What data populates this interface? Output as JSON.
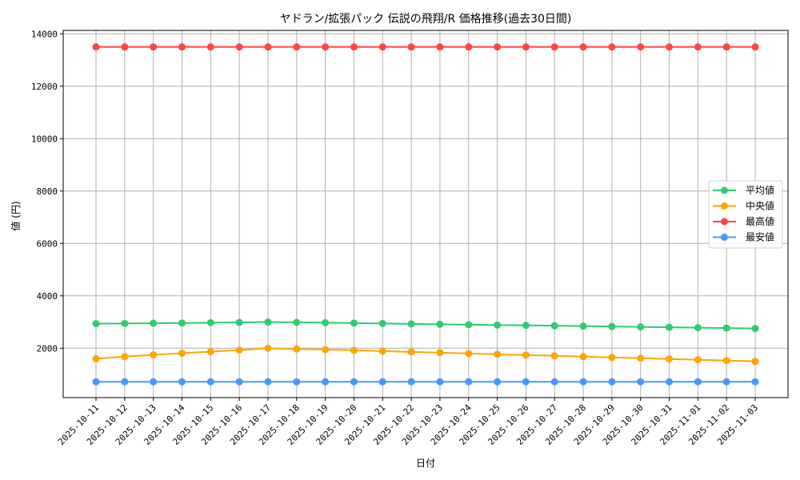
{
  "chart_data": {
    "type": "line",
    "title": "ヤドラン/拡張パック 伝説の飛翔/R 価格推移(過去30日間)",
    "xlabel": "日付",
    "ylabel": "値 (円)",
    "ylim": [
      0,
      14000
    ],
    "yticks": [
      2000,
      4000,
      6000,
      8000,
      10000,
      12000,
      14000
    ],
    "grid": true,
    "legend_position": "center right",
    "x": [
      "2025-10-11",
      "2025-10-12",
      "2025-10-13",
      "2025-10-14",
      "2025-10-15",
      "2025-10-16",
      "2025-10-17",
      "2025-10-18",
      "2025-10-19",
      "2025-10-20",
      "2025-10-21",
      "2025-10-22",
      "2025-10-23",
      "2025-10-24",
      "2025-10-25",
      "2025-10-26",
      "2025-10-27",
      "2025-10-28",
      "2025-10-29",
      "2025-10-30",
      "2025-10-31",
      "2025-11-01",
      "2025-11-02",
      "2025-11-03"
    ],
    "series": [
      {
        "name": "平均値",
        "color": "#2ecc71",
        "values": [
          2940,
          2945,
          2955,
          2965,
          2975,
          2985,
          3000,
          2990,
          2975,
          2960,
          2945,
          2930,
          2915,
          2900,
          2885,
          2875,
          2860,
          2845,
          2830,
          2815,
          2800,
          2785,
          2770,
          2755
        ]
      },
      {
        "name": "中央値",
        "color": "#ffa500",
        "values": [
          1600,
          1680,
          1750,
          1810,
          1870,
          1930,
          2000,
          1970,
          1950,
          1920,
          1890,
          1860,
          1830,
          1800,
          1770,
          1740,
          1710,
          1680,
          1650,
          1620,
          1590,
          1560,
          1530,
          1500
        ]
      },
      {
        "name": "最高値",
        "color": "#ff4444",
        "values": [
          13500,
          13500,
          13500,
          13500,
          13500,
          13500,
          13500,
          13500,
          13500,
          13500,
          13500,
          13500,
          13500,
          13500,
          13500,
          13500,
          13500,
          13500,
          13500,
          13500,
          13500,
          13500,
          13500,
          13500
        ]
      },
      {
        "name": "最安値",
        "color": "#4499ff",
        "values": [
          720,
          720,
          720,
          720,
          720,
          720,
          720,
          720,
          720,
          720,
          720,
          720,
          720,
          720,
          720,
          720,
          720,
          720,
          720,
          720,
          720,
          720,
          720,
          720
        ]
      }
    ]
  }
}
